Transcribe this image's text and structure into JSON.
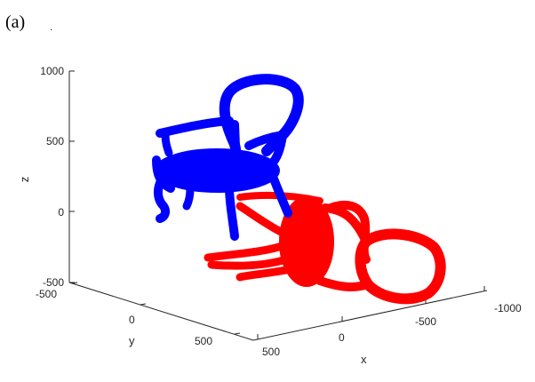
{
  "panel_label": "(a)",
  "panel_dot": ".",
  "chart_data": {
    "type": "scatter3d",
    "title": "",
    "xlabel": "x",
    "ylabel": "y",
    "zlabel": "z",
    "grid": false,
    "x_ticks": [
      "500",
      "0",
      "-500",
      "-1000"
    ],
    "y_ticks": [
      "-500",
      "0",
      "500"
    ],
    "z_ticks": [
      "1000",
      "500",
      "0",
      "-500"
    ],
    "series": [
      {
        "name": "",
        "color": "#0000ff",
        "description_shape": "upright chair point cloud"
      },
      {
        "name": "",
        "color": "#ff0000",
        "description_shape": "chair point cloud lying on its back"
      }
    ]
  }
}
